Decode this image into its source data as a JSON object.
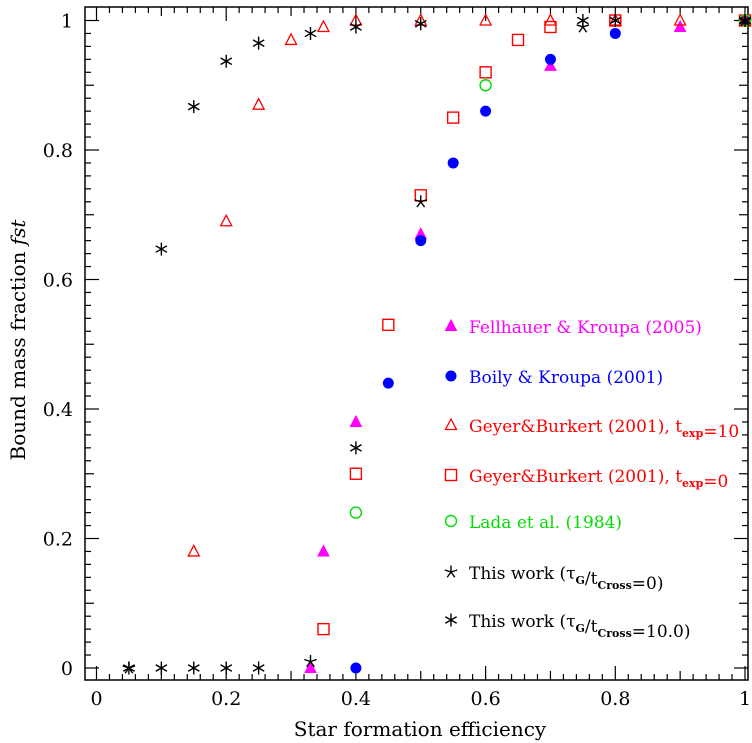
{
  "chart_data": {
    "type": "scatter",
    "xlabel": "Star formation efficiency",
    "ylabel": "Bound mass fraction",
    "ylabel_italic": "fst",
    "xlim": [
      -0.02,
      1.005
    ],
    "ylim": [
      -0.02,
      1.02
    ],
    "grid": false,
    "legend_placement": "right",
    "x_ticks": [
      "0",
      "0.2",
      "0.4",
      "0.6",
      "0.8",
      "1"
    ],
    "y_ticks": [
      "0",
      "0.2",
      "0.4",
      "0.6",
      "0.8",
      "1"
    ],
    "series": [
      {
        "name": "Fellhauer & Kroupa (2005)",
        "color": "#ff00ff",
        "marker": "filled-triangle",
        "points": [
          [
            0.33,
            0.0
          ],
          [
            0.35,
            0.18
          ],
          [
            0.4,
            0.38
          ],
          [
            0.5,
            0.67
          ],
          [
            0.7,
            0.93
          ],
          [
            0.9,
            0.99
          ],
          [
            1.0,
            1.0
          ]
        ]
      },
      {
        "name": "Boily & Kroupa (2001)",
        "color": "#0000ff",
        "marker": "filled-circle",
        "points": [
          [
            0.4,
            0.0
          ],
          [
            0.45,
            0.44
          ],
          [
            0.5,
            0.66
          ],
          [
            0.55,
            0.78
          ],
          [
            0.6,
            0.86
          ],
          [
            0.7,
            0.94
          ],
          [
            0.8,
            0.98
          ],
          [
            1.0,
            1.0
          ]
        ]
      },
      {
        "name": "Geyer&Burkert (2001), t",
        "name_sub": "exp",
        "name_suffix": "=10",
        "color": "#ff0000",
        "marker": "open-triangle",
        "points": [
          [
            0.15,
            0.18
          ],
          [
            0.2,
            0.69
          ],
          [
            0.25,
            0.87
          ],
          [
            0.3,
            0.97
          ],
          [
            0.35,
            0.99
          ],
          [
            0.4,
            1.0
          ],
          [
            0.5,
            1.0
          ],
          [
            0.6,
            1.0
          ],
          [
            0.7,
            1.0
          ],
          [
            0.8,
            1.0
          ],
          [
            0.9,
            1.0
          ],
          [
            1.0,
            1.0
          ]
        ]
      },
      {
        "name": "Geyer&Burkert (2001), t",
        "name_sub": "exp",
        "name_suffix": "=0",
        "color": "#ff0000",
        "marker": "open-square",
        "points": [
          [
            0.35,
            0.06
          ],
          [
            0.4,
            0.3
          ],
          [
            0.45,
            0.53
          ],
          [
            0.5,
            0.73
          ],
          [
            0.55,
            0.85
          ],
          [
            0.6,
            0.92
          ],
          [
            0.65,
            0.97
          ],
          [
            0.7,
            0.99
          ],
          [
            0.8,
            1.0
          ],
          [
            1.0,
            1.0
          ]
        ]
      },
      {
        "name": "Lada et al. (1984)",
        "color": "#00dd00",
        "marker": "open-circle",
        "points": [
          [
            0.4,
            0.24
          ],
          [
            0.6,
            0.9
          ],
          [
            1.0,
            1.0
          ]
        ]
      },
      {
        "name": "This work (τ",
        "name_sub": "G",
        "name_mid": "/t",
        "name_sub2": "Cross",
        "name_suffix": "=0)",
        "color": "#000000",
        "marker": "star5",
        "points": [
          [
            0.05,
            0.0
          ],
          [
            0.33,
            0.01
          ],
          [
            0.5,
            0.72
          ],
          [
            0.75,
            0.99
          ],
          [
            1.0,
            1.0
          ]
        ]
      },
      {
        "name": "This work (τ",
        "name_sub": "G",
        "name_mid": "/t",
        "name_sub2": "Cross",
        "name_suffix": "=10.0)",
        "color": "#000000",
        "marker": "star6",
        "points": [
          [
            0.05,
            0.0
          ],
          [
            0.1,
            0.0
          ],
          [
            0.15,
            0.0
          ],
          [
            0.2,
            0.0
          ],
          [
            0.25,
            0.0
          ],
          [
            0.1,
            0.647
          ],
          [
            0.15,
            0.867
          ],
          [
            0.2,
            0.937
          ],
          [
            0.25,
            0.965
          ],
          [
            0.33,
            0.98
          ],
          [
            0.4,
            0.99
          ],
          [
            0.5,
            0.995
          ],
          [
            0.75,
            1.0
          ],
          [
            0.8,
            1.0
          ],
          [
            1.0,
            1.0
          ],
          [
            0.4,
            0.34
          ]
        ]
      }
    ]
  }
}
